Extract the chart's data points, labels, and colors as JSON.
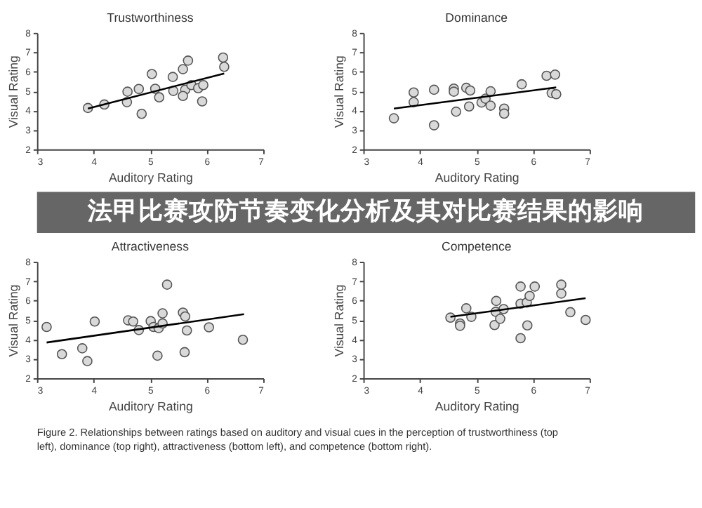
{
  "chart_data": [
    {
      "type": "scatter",
      "title": "Trustworthiness",
      "xlabel": "Auditory Rating",
      "ylabel": "Visual Rating",
      "xlim": [
        3,
        7
      ],
      "xticks": [
        3,
        4,
        5,
        6,
        7
      ],
      "ylim": [
        2,
        8
      ],
      "yticks": [
        2,
        3,
        4,
        5,
        6,
        7,
        8
      ],
      "grid": false,
      "series": [
        {
          "type": "scatter",
          "marker": "circle",
          "color": "#d9d9d9",
          "x": [
            3.9,
            4.19,
            4.6,
            4.59,
            4.8,
            4.85,
            5.03,
            5.09,
            5.16,
            5.4,
            5.41,
            5.58,
            5.67,
            5.62,
            5.58,
            5.73,
            5.85,
            5.94,
            5.92,
            6.29,
            6.31
          ],
          "values": [
            4.13,
            4.31,
            4.97,
            4.43,
            5.11,
            3.83,
            5.88,
            5.12,
            4.68,
            5.73,
            5.01,
            6.13,
            6.57,
            5.07,
            4.75,
            5.31,
            5.15,
            5.31,
            4.47,
            6.73,
            6.25
          ]
        },
        {
          "type": "line",
          "marker": "none",
          "color": "#000000",
          "x": [
            3.9,
            6.31
          ],
          "values": [
            4.1,
            5.91
          ]
        }
      ]
    },
    {
      "type": "scatter",
      "title": "Dominance",
      "xlabel": "Auditory Rating",
      "ylabel": "Visual Rating",
      "xlim": [
        3,
        7
      ],
      "xticks": [
        3,
        4,
        5,
        6,
        7
      ],
      "ylim": [
        2,
        8
      ],
      "yticks": [
        2,
        3,
        4,
        5,
        6,
        7,
        8
      ],
      "grid": false,
      "series": [
        {
          "type": "scatter",
          "marker": "circle",
          "color": "#d9d9d9",
          "x": [
            3.54,
            3.89,
            3.89,
            4.25,
            4.25,
            4.6,
            4.6,
            4.64,
            4.82,
            4.89,
            4.87,
            5.09,
            5.16,
            5.25,
            5.25,
            5.49,
            5.49,
            5.8,
            6.24,
            6.39,
            6.33,
            6.41
          ],
          "values": [
            3.6,
            4.93,
            4.43,
            5.07,
            3.24,
            5.13,
            4.97,
            3.94,
            5.17,
            5.03,
            4.21,
            4.41,
            4.61,
            4.99,
            4.25,
            4.1,
            3.84,
            5.35,
            5.79,
            5.85,
            4.9,
            4.84
          ]
        },
        {
          "type": "line",
          "marker": "none",
          "color": "#000000",
          "x": [
            3.54,
            6.41
          ],
          "values": [
            4.1,
            5.19
          ]
        }
      ]
    },
    {
      "type": "other",
      "annotations": [
        "法甲比赛攻防节奏变化分析及其对比赛结果的影响"
      ]
    },
    {
      "type": "scatter",
      "title": "Attractiveness",
      "xlabel": "Auditory Rating",
      "ylabel": "Visual Rating",
      "xlim": [
        3,
        7
      ],
      "xticks": [
        3,
        4,
        5,
        6,
        7
      ],
      "ylim": [
        2,
        8
      ],
      "yticks": [
        2,
        3,
        4,
        5,
        6,
        7,
        8
      ],
      "grid": false,
      "series": [
        {
          "type": "scatter",
          "marker": "circle",
          "color": "#d9d9d9",
          "x": [
            3.17,
            3.44,
            3.8,
            3.89,
            4.02,
            4.61,
            4.7,
            4.8,
            5.01,
            5.06,
            5.15,
            5.22,
            5.22,
            5.13,
            5.58,
            5.62,
            5.65,
            5.61,
            6.04,
            6.64,
            5.3
          ],
          "values": [
            4.64,
            3.24,
            3.54,
            2.88,
            4.92,
            4.98,
            4.92,
            4.48,
            4.94,
            4.64,
            4.58,
            4.82,
            5.34,
            3.16,
            5.38,
            5.18,
            4.46,
            3.34,
            4.62,
            3.98,
            6.82
          ]
        },
        {
          "type": "line",
          "marker": "none",
          "color": "#000000",
          "x": [
            3.17,
            6.66
          ],
          "values": [
            3.84,
            5.3
          ]
        }
      ]
    },
    {
      "type": "scatter",
      "title": "Competence",
      "xlabel": "Auditory Rating",
      "ylabel": "Visual Rating",
      "xlim": [
        3,
        7
      ],
      "xticks": [
        3,
        4,
        5,
        6,
        7
      ],
      "ylim": [
        2,
        8
      ],
      "yticks": [
        2,
        3,
        4,
        5,
        6,
        7,
        8
      ],
      "grid": false,
      "series": [
        {
          "type": "scatter",
          "marker": "circle",
          "color": "#d9d9d9",
          "x": [
            4.54,
            4.71,
            4.71,
            4.82,
            4.91,
            5.35,
            5.34,
            5.32,
            5.42,
            5.48,
            5.78,
            5.89,
            5.94,
            5.9,
            5.78,
            5.78,
            6.03,
            6.5,
            6.5,
            6.66,
            6.93
          ],
          "values": [
            5.12,
            4.82,
            4.7,
            5.6,
            5.16,
            5.98,
            5.42,
            4.74,
            5.06,
            5.56,
            5.84,
            5.9,
            6.24,
            4.72,
            4.06,
            6.72,
            6.72,
            6.36,
            6.82,
            5.4,
            5.0
          ]
        },
        {
          "type": "line",
          "marker": "none",
          "color": "#000000",
          "x": [
            4.54,
            6.93
          ],
          "values": [
            5.16,
            6.12
          ]
        }
      ]
    },
    {
      "type": "other",
      "annotations": [
        "Figure 2.  Relationships between ratings based on auditory and visual cues in the perception of trustworthiness (top left), dominance (top right), attractiveness (bottom left), and competence (bottom right)."
      ]
    }
  ]
}
